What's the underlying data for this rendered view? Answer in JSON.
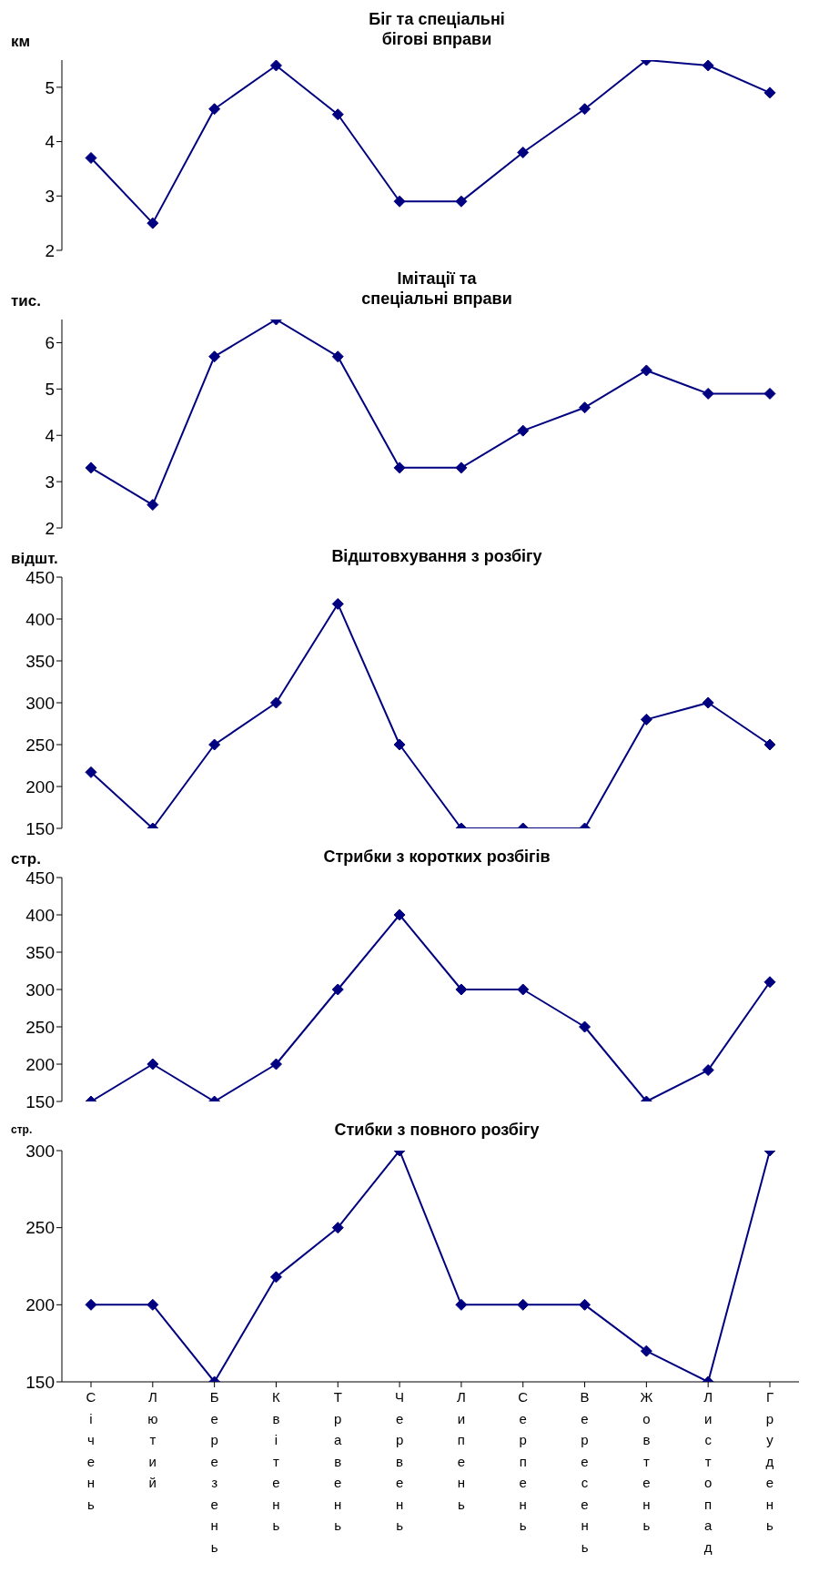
{
  "chart_data": [
    {
      "type": "line",
      "title": "Біг та спеціальні\nбігові вправи",
      "ylabel": "км",
      "categories": [
        "Січень",
        "Лютий",
        "Березень",
        "Квітень",
        "Травень",
        "Червень",
        "Липень",
        "Серпень",
        "Вересень",
        "Жовтень",
        "Листопад",
        "Грудень"
      ],
      "tick_labels": "y",
      "ylim": [
        2,
        5.5
      ],
      "yticks": [
        2,
        3,
        4,
        5
      ],
      "marker": "diamond",
      "legend": false,
      "grid": false,
      "series": [
        {
          "color": "#000080",
          "values": [
            3.7,
            2.5,
            4.6,
            5.4,
            4.5,
            2.9,
            2.9,
            3.8,
            4.6,
            5.5,
            5.4,
            4.9
          ]
        }
      ]
    },
    {
      "type": "line",
      "title": "Імітації та\nспеціальні вправи",
      "ylabel": "тис.",
      "categories": [
        "Січень",
        "Лютий",
        "Березень",
        "Квітень",
        "Травень",
        "Червень",
        "Липень",
        "Серпень",
        "Вересень",
        "Жовтень",
        "Листопад",
        "Грудень"
      ],
      "tick_labels": "y",
      "ylim": [
        2,
        6.5
      ],
      "yticks": [
        2,
        3,
        4,
        5,
        6
      ],
      "marker": "diamond",
      "legend": false,
      "grid": false,
      "series": [
        {
          "color": "#000080",
          "values": [
            3.3,
            2.5,
            5.7,
            6.5,
            5.7,
            3.3,
            3.3,
            4.1,
            4.6,
            5.4,
            4.9,
            4.9
          ]
        }
      ]
    },
    {
      "type": "line",
      "title": "Відштовхування з розбігу",
      "ylabel": "відшт.",
      "categories": [
        "Січень",
        "Лютий",
        "Березень",
        "Квітень",
        "Травень",
        "Червень",
        "Липень",
        "Серпень",
        "Вересень",
        "Жовтень",
        "Листопад",
        "Грудень"
      ],
      "tick_labels": "y",
      "ylim": [
        150,
        450
      ],
      "yticks": [
        150,
        200,
        250,
        300,
        350,
        400,
        450
      ],
      "marker": "diamond",
      "legend": false,
      "grid": false,
      "series": [
        {
          "color": "#000080",
          "values": [
            217,
            150,
            250,
            300,
            418,
            250,
            150,
            150,
            150,
            280,
            300,
            250
          ]
        }
      ]
    },
    {
      "type": "line",
      "title": "Стрибки з коротких розбігів",
      "ylabel": "стр.",
      "categories": [
        "Січень",
        "Лютий",
        "Березень",
        "Квітень",
        "Травень",
        "Червень",
        "Липень",
        "Серпень",
        "Вересень",
        "Жовтень",
        "Листопад",
        "Грудень"
      ],
      "tick_labels": "y",
      "ylim": [
        150,
        450
      ],
      "yticks": [
        150,
        200,
        250,
        300,
        350,
        400,
        450
      ],
      "marker": "diamond",
      "legend": false,
      "grid": false,
      "series": [
        {
          "color": "#000080",
          "values": [
            150,
            200,
            150,
            200,
            300,
            400,
            300,
            300,
            250,
            150,
            192,
            310
          ]
        }
      ]
    },
    {
      "type": "line",
      "title": "Стибки з повного розбігу",
      "ylabel": "стр.",
      "categories": [
        "Січень",
        "Лютий",
        "Березень",
        "Квітень",
        "Травень",
        "Червень",
        "Липень",
        "Серпень",
        "Вересень",
        "Жовтень",
        "Листопад",
        "Грудень"
      ],
      "ylim": [
        150,
        300
      ],
      "yticks": [
        150,
        200,
        250,
        300
      ],
      "marker": "diamond",
      "legend": false,
      "grid": false,
      "series": [
        {
          "color": "#000080",
          "values": [
            200,
            200,
            150,
            218,
            250,
            300,
            200,
            200,
            200,
            170,
            150,
            300
          ]
        }
      ]
    }
  ]
}
